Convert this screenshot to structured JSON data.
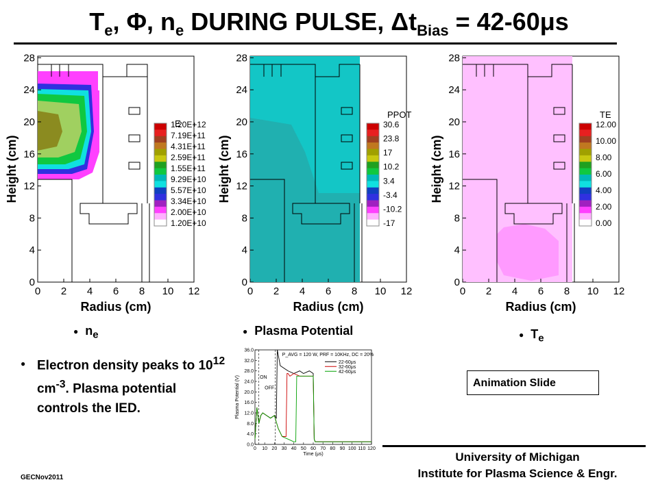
{
  "title": {
    "main": "T",
    "main_sub": "e",
    "rest": ", Φ, n",
    "rest_sub": "e",
    "rest2": " DURING PULSE, Δt",
    "bias_sub": "Bias",
    "rest3": " = 42-60μs"
  },
  "axes": {
    "xlabel": "Radius (cm)",
    "ylabel": "Height (cm)",
    "xticks": [
      "0",
      "2",
      "4",
      "6",
      "8",
      "10",
      "12"
    ],
    "yticks": [
      "0",
      "4",
      "8",
      "12",
      "16",
      "20",
      "24",
      "28"
    ]
  },
  "plots": [
    {
      "legend_title": "E",
      "legend_values": [
        "1.20E+12",
        "7.19E+11",
        "4.31E+11",
        "2.59E+11",
        "1.55E+11",
        "9.29E+10",
        "5.57E+10",
        "3.34E+10",
        "2.00E+10",
        "1.20E+10"
      ],
      "caption": "n",
      "caption_sub": "e"
    },
    {
      "legend_title": "PPOT",
      "legend_values": [
        "30.6",
        "23.8",
        "17",
        "10.2",
        "3.4",
        "-3.4",
        "-10.2",
        "-17"
      ],
      "caption": "Plasma Potential",
      "caption_sub": ""
    },
    {
      "legend_title": "TE",
      "legend_values": [
        "12.00",
        "10.00",
        "8.00",
        "6.00",
        "4.00",
        "2.00",
        "0.00"
      ],
      "caption": "T",
      "caption_sub": "e"
    }
  ],
  "colors": {
    "scale": [
      "#cc0000",
      "#e82020",
      "#a04020",
      "#c07820",
      "#a0a000",
      "#c8c810",
      "#20a020",
      "#10c840",
      "#00b8b8",
      "#10e0e0",
      "#1040c0",
      "#3030e0",
      "#a020c0",
      "#ff40ff",
      "#ffb0ff",
      "#ffffff"
    ],
    "ne_core": "#8b8b20",
    "ppot_fill": "#20b0b0",
    "te_fill": "#ffb8ff"
  },
  "body": {
    "line1": "Electron density peaks to 10",
    "sup1": "12",
    "mid": " cm",
    "sup2": "-3",
    "rest": ".  Plasma potential controls the IED."
  },
  "animation_label": "Animation Slide",
  "affiliation": {
    "line1": "University of Michigan",
    "line2": "Institute for Plasma Science & Engr."
  },
  "footer": "GECNov2011",
  "chart_data": {
    "type": "line",
    "title": "P_AVG = 120 W, PRF = 10KHz, DC = 20%",
    "xlabel": "Time (μs)",
    "ylabel": "Plasma Potential (V)",
    "xlim": [
      0,
      120
    ],
    "ylim": [
      0,
      36
    ],
    "xticks": [
      "0",
      "10",
      "20",
      "30",
      "40",
      "50",
      "60",
      "70",
      "80",
      "90",
      "100",
      "110",
      "120"
    ],
    "yticks": [
      "0.0",
      "4.0",
      "8.0",
      "12.0",
      "16.0",
      "20.0",
      "24.0",
      "28.0",
      "32.0",
      "36.0"
    ],
    "annotations": [
      "ON",
      "OFF"
    ],
    "series": [
      {
        "name": "22-60μs",
        "color": "#000000",
        "x": [
          0,
          2,
          4,
          6,
          8,
          12,
          16,
          20,
          22,
          23,
          24,
          26,
          30,
          34,
          40,
          46,
          50,
          56,
          60,
          61,
          62,
          64,
          70,
          80,
          90,
          100,
          110,
          120
        ],
        "y": [
          2,
          14,
          8,
          11,
          12,
          11,
          10,
          11,
          10,
          36,
          34,
          30,
          29,
          28,
          27,
          28,
          27,
          28,
          27,
          2,
          1,
          1,
          1,
          1,
          1,
          1,
          1,
          1
        ]
      },
      {
        "name": "32-60μs",
        "color": "#cc0000",
        "x": [
          0,
          2,
          4,
          6,
          8,
          12,
          16,
          20,
          24,
          28,
          30,
          32,
          33,
          34,
          36,
          40,
          46,
          50,
          56,
          60,
          61,
          62,
          64,
          70,
          80,
          90,
          100,
          110,
          120
        ],
        "y": [
          2,
          14,
          8,
          11,
          12,
          11,
          10,
          11,
          6,
          3,
          3,
          3,
          27,
          27,
          26,
          27,
          26,
          26,
          26,
          26,
          2,
          1,
          1,
          1,
          1,
          1,
          1,
          1,
          1
        ]
      },
      {
        "name": "42-60μs",
        "color": "#00a000",
        "x": [
          0,
          2,
          4,
          6,
          8,
          12,
          16,
          20,
          24,
          28,
          34,
          40,
          42,
          43,
          46,
          50,
          56,
          60,
          61,
          62,
          64,
          70,
          80,
          90,
          100,
          110,
          120
        ],
        "y": [
          2,
          14,
          8,
          11,
          12,
          11,
          10,
          11,
          6,
          3,
          2,
          1,
          1,
          26,
          26,
          26,
          26,
          26,
          2,
          1,
          1,
          1,
          1,
          1,
          1,
          1,
          1
        ]
      }
    ]
  }
}
